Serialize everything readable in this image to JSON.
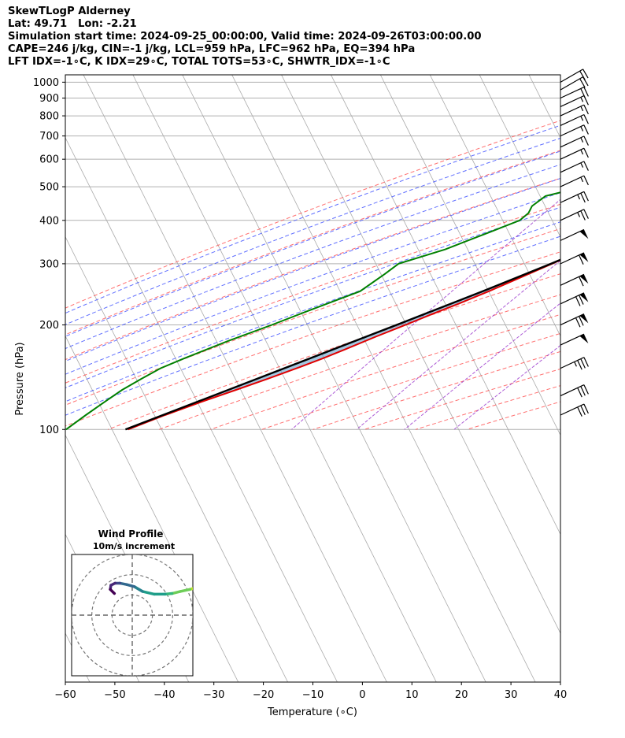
{
  "header": {
    "lines": [
      "SkewTLogP Alderney",
      "Lat: 49.71   Lon: -2.21",
      "Simulation start time: 2024-09-25_00:00:00, Valid time: 2024-09-26T03:00:00.00",
      "CAPE=246 j/kg, CIN=-1 j/kg, LCL=959 hPa, LFC=962 hPa, EQ=394 hPa",
      "LFT IDX=-1∘C, K IDX=29∘C, TOTAL TOTS=53∘C, SHWTR_IDX=-1∘C"
    ]
  },
  "chart_data": {
    "type": "line",
    "xlabel": "Temperature (∘C)",
    "ylabel": "Pressure (hPa)",
    "xlim": [
      -60,
      40
    ],
    "ylim": [
      1050,
      100
    ],
    "y_scale": "log",
    "x_ticks": [
      -60,
      -50,
      -40,
      -30,
      -20,
      -10,
      0,
      10,
      20,
      30,
      40
    ],
    "x_tick_labels": [
      "−60",
      "−50",
      "−40",
      "−30",
      "−20",
      "−10",
      "0",
      "10",
      "20",
      "30",
      "40"
    ],
    "y_ticks": [
      1000,
      900,
      800,
      700,
      600,
      500,
      400,
      300,
      200,
      100
    ],
    "grid": true,
    "skew": true,
    "series": [
      {
        "role": "temperature",
        "color": "#e00000",
        "p": [
          1000,
          950,
          900,
          850,
          800,
          750,
          700,
          650,
          600,
          550,
          500,
          450,
          420,
          400,
          380,
          350,
          330,
          300,
          280,
          250,
          230,
          215,
          200,
          185,
          170,
          160,
          150,
          140,
          130,
          120,
          110,
          100
        ],
        "t": [
          16.0,
          15.1,
          13.7,
          12.1,
          10.3,
          8.4,
          6.5,
          4.1,
          1.5,
          -1.3,
          -4.2,
          -7.5,
          -9.5,
          -11.3,
          -13.4,
          -17.2,
          -19.8,
          -24.0,
          -27.0,
          -32.0,
          -36.0,
          -39.5,
          -43.0,
          -47.0,
          -51.0,
          -54.0,
          -57.5,
          -61.5,
          -66.0,
          -71.0,
          -76.0,
          -81.0
        ]
      },
      {
        "role": "dewpoint",
        "color": "#008000",
        "p": [
          985,
          950,
          900,
          850,
          800,
          750,
          700,
          650,
          600,
          550,
          500,
          470,
          440,
          420,
          400,
          370,
          350,
          330,
          300,
          280,
          250,
          220,
          200,
          180,
          160,
          150,
          140,
          130,
          120,
          110,
          100
        ],
        "td": [
          15.0,
          14.2,
          12.8,
          11.2,
          8.0,
          1.5,
          -6.5,
          -13.5,
          -18.5,
          -24.0,
          -31.0,
          -37.0,
          -38.0,
          -37.5,
          -38.0,
          -42.0,
          -45.0,
          -48.0,
          -55.0,
          -56.0,
          -58.0,
          -65.0,
          -70.0,
          -76.0,
          -82.0,
          -85.0,
          -87.0,
          -89.0,
          -90.5,
          -92.0,
          -93.5
        ]
      },
      {
        "role": "parcel",
        "color": "#000000",
        "p": [
          985,
          960,
          900,
          850,
          800,
          750,
          700,
          650,
          600,
          550,
          500,
          450,
          400,
          394,
          350,
          300,
          250,
          200,
          150,
          100
        ],
        "t": [
          16.9,
          15.3,
          14.2,
          12.8,
          11.3,
          9.6,
          7.7,
          5.5,
          3.0,
          0.2,
          -3.1,
          -7.0,
          -11.6,
          -12.2,
          -17.2,
          -24.2,
          -33.2,
          -44.8,
          -60.0,
          -81.5
        ]
      }
    ],
    "wind_barbs": [
      {
        "p": 1000,
        "direction": 240,
        "speed_kt": 20
      },
      {
        "p": 950,
        "direction": 240,
        "speed_kt": 20
      },
      {
        "p": 900,
        "direction": 245,
        "speed_kt": 20
      },
      {
        "p": 850,
        "direction": 245,
        "speed_kt": 15
      },
      {
        "p": 800,
        "direction": 245,
        "speed_kt": 15
      },
      {
        "p": 750,
        "direction": 245,
        "speed_kt": 15
      },
      {
        "p": 700,
        "direction": 245,
        "speed_kt": 15
      },
      {
        "p": 650,
        "direction": 245,
        "speed_kt": 15
      },
      {
        "p": 600,
        "direction": 245,
        "speed_kt": 15
      },
      {
        "p": 550,
        "direction": 245,
        "speed_kt": 15
      },
      {
        "p": 500,
        "direction": 245,
        "speed_kt": 15
      },
      {
        "p": 450,
        "direction": 245,
        "speed_kt": 25
      },
      {
        "p": 400,
        "direction": 245,
        "speed_kt": 25
      },
      {
        "p": 350,
        "direction": 245,
        "speed_kt": 50
      },
      {
        "p": 300,
        "direction": 245,
        "speed_kt": 60
      },
      {
        "p": 260,
        "direction": 245,
        "speed_kt": 60
      },
      {
        "p": 230,
        "direction": 245,
        "speed_kt": 70
      },
      {
        "p": 200,
        "direction": 245,
        "speed_kt": 70
      },
      {
        "p": 175,
        "direction": 245,
        "speed_kt": 50
      },
      {
        "p": 150,
        "direction": 245,
        "speed_kt": 35
      },
      {
        "p": 125,
        "direction": 245,
        "speed_kt": 30
      },
      {
        "p": 110,
        "direction": 245,
        "speed_kt": 30
      }
    ],
    "shading": [
      {
        "role": "cape",
        "color": "#5b9bc8"
      },
      {
        "role": "cin",
        "color": "#e07070"
      }
    ]
  },
  "hodograph": {
    "title_line1": "Wind Profile",
    "title_line2": "10m/s increment",
    "u": [
      12.0,
      11.0,
      9.8,
      8.4,
      7.0,
      5.8,
      4.8,
      3.2,
      1.5,
      0.3,
      -0.8,
      -1.8,
      -2.5,
      -3.1,
      -3.2,
      -2.6
    ],
    "v": [
      4.6,
      3.8,
      3.0,
      2.6,
      2.3,
      2.0,
      1.9,
      1.9,
      2.3,
      3.0,
      3.3,
      3.5,
      3.5,
      3.2,
      2.6,
      2.0
    ],
    "rings": [
      5,
      10,
      15
    ],
    "max": 15
  }
}
